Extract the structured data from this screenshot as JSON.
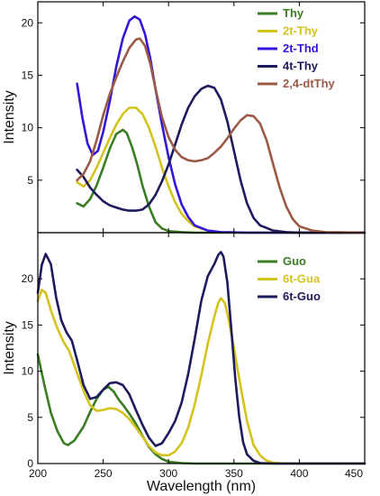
{
  "chart_data": [
    {
      "type": "line",
      "panel": "top",
      "xlabel": "",
      "ylabel": "Intensity",
      "xlim": [
        200,
        450
      ],
      "ylim": [
        0,
        22
      ],
      "x_ticks": [],
      "y_ticks": [
        5,
        10,
        15,
        20
      ],
      "legend_position": "top-right",
      "series": [
        {
          "name": "Thy",
          "color": "#3a7d22",
          "points": [
            [
              230,
              2.8
            ],
            [
              235,
              2.5
            ],
            [
              240,
              3.2
            ],
            [
              245,
              4.5
            ],
            [
              250,
              6.2
            ],
            [
              255,
              8.0
            ],
            [
              260,
              9.4
            ],
            [
              265,
              9.8
            ],
            [
              268,
              9.5
            ],
            [
              272,
              8.2
            ],
            [
              276,
              6.5
            ],
            [
              280,
              4.5
            ],
            [
              285,
              2.5
            ],
            [
              290,
              1.0
            ],
            [
              295,
              0.4
            ],
            [
              300,
              0.15
            ],
            [
              310,
              0.05
            ],
            [
              320,
              0.0
            ],
            [
              450,
              0.0
            ]
          ]
        },
        {
          "name": "2t-Thy",
          "color": "#d4c31c",
          "points": [
            [
              230,
              4.8
            ],
            [
              235,
              4.4
            ],
            [
              240,
              5.0
            ],
            [
              245,
              6.2
            ],
            [
              250,
              7.6
            ],
            [
              255,
              9.0
            ],
            [
              260,
              10.3
            ],
            [
              265,
              11.3
            ],
            [
              270,
              11.9
            ],
            [
              275,
              11.9
            ],
            [
              280,
              11.3
            ],
            [
              285,
              10.0
            ],
            [
              290,
              8.2
            ],
            [
              295,
              6.2
            ],
            [
              300,
              4.4
            ],
            [
              305,
              2.9
            ],
            [
              310,
              1.8
            ],
            [
              315,
              1.1
            ],
            [
              320,
              0.6
            ],
            [
              330,
              0.2
            ],
            [
              340,
              0.05
            ],
            [
              360,
              0.0
            ],
            [
              450,
              0.0
            ]
          ]
        },
        {
          "name": "2t-Thd",
          "color": "#3317d8",
          "points": [
            [
              230,
              14.2
            ],
            [
              234,
              11.0
            ],
            [
              238,
              8.5
            ],
            [
              242,
              7.4
            ],
            [
              246,
              7.8
            ],
            [
              250,
              9.6
            ],
            [
              255,
              12.5
            ],
            [
              260,
              15.8
            ],
            [
              265,
              18.5
            ],
            [
              270,
              20.2
            ],
            [
              274,
              20.6
            ],
            [
              278,
              20.3
            ],
            [
              282,
              18.9
            ],
            [
              286,
              16.6
            ],
            [
              290,
              13.7
            ],
            [
              295,
              10.3
            ],
            [
              300,
              7.2
            ],
            [
              305,
              4.6
            ],
            [
              310,
              2.7
            ],
            [
              315,
              1.5
            ],
            [
              320,
              0.7
            ],
            [
              330,
              0.2
            ],
            [
              340,
              0.05
            ],
            [
              360,
              0.0
            ],
            [
              450,
              0.0
            ]
          ]
        },
        {
          "name": "4t-Thy",
          "color": "#1e1a5e",
          "points": [
            [
              230,
              6.0
            ],
            [
              235,
              5.3
            ],
            [
              240,
              4.3
            ],
            [
              245,
              3.6
            ],
            [
              250,
              3.0
            ],
            [
              255,
              2.6
            ],
            [
              260,
              2.4
            ],
            [
              265,
              2.2
            ],
            [
              270,
              2.1
            ],
            [
              275,
              2.1
            ],
            [
              280,
              2.2
            ],
            [
              285,
              2.7
            ],
            [
              290,
              3.6
            ],
            [
              295,
              4.9
            ],
            [
              300,
              6.5
            ],
            [
              305,
              8.4
            ],
            [
              310,
              10.3
            ],
            [
              315,
              11.9
            ],
            [
              320,
              13.0
            ],
            [
              325,
              13.7
            ],
            [
              330,
              14.0
            ],
            [
              335,
              13.8
            ],
            [
              340,
              12.7
            ],
            [
              345,
              10.6
            ],
            [
              350,
              7.8
            ],
            [
              355,
              5.0
            ],
            [
              360,
              2.8
            ],
            [
              365,
              1.4
            ],
            [
              370,
              0.7
            ],
            [
              380,
              0.2
            ],
            [
              390,
              0.05
            ],
            [
              400,
              0.0
            ],
            [
              450,
              0.0
            ]
          ]
        },
        {
          "name": "2,4-dtThy",
          "color": "#9a5a45",
          "points": [
            [
              230,
              5.0
            ],
            [
              235,
              5.6
            ],
            [
              240,
              6.8
            ],
            [
              245,
              8.8
            ],
            [
              250,
              11.2
            ],
            [
              255,
              13.2
            ],
            [
              260,
              14.8
            ],
            [
              265,
              16.3
            ],
            [
              270,
              17.6
            ],
            [
              275,
              18.4
            ],
            [
              278,
              18.5
            ],
            [
              282,
              17.8
            ],
            [
              286,
              16.1
            ],
            [
              290,
              13.7
            ],
            [
              295,
              11.0
            ],
            [
              300,
              9.1
            ],
            [
              305,
              7.9
            ],
            [
              310,
              7.2
            ],
            [
              315,
              6.9
            ],
            [
              320,
              6.8
            ],
            [
              325,
              6.9
            ],
            [
              330,
              7.1
            ],
            [
              335,
              7.6
            ],
            [
              340,
              8.2
            ],
            [
              345,
              9.0
            ],
            [
              350,
              9.9
            ],
            [
              355,
              10.7
            ],
            [
              360,
              11.2
            ],
            [
              365,
              11.1
            ],
            [
              370,
              10.4
            ],
            [
              375,
              8.8
            ],
            [
              380,
              6.5
            ],
            [
              385,
              4.3
            ],
            [
              390,
              2.5
            ],
            [
              395,
              1.3
            ],
            [
              400,
              0.6
            ],
            [
              410,
              0.2
            ],
            [
              420,
              0.05
            ],
            [
              450,
              0.0
            ]
          ]
        }
      ]
    },
    {
      "type": "line",
      "panel": "bottom",
      "xlabel": "Wavelength (nm)",
      "ylabel": "Intensity",
      "xlim": [
        200,
        450
      ],
      "ylim": [
        0,
        25
      ],
      "x_ticks": [
        200,
        250,
        300,
        350,
        400,
        450
      ],
      "y_ticks": [
        0,
        5,
        10,
        15,
        20
      ],
      "legend_position": "top-right",
      "series": [
        {
          "name": "Guo",
          "color": "#3a7d22",
          "points": [
            [
              200,
              11.8
            ],
            [
              205,
              8.5
            ],
            [
              210,
              5.5
            ],
            [
              215,
              3.5
            ],
            [
              220,
              2.2
            ],
            [
              223,
              2.0
            ],
            [
              228,
              2.5
            ],
            [
              235,
              4.0
            ],
            [
              240,
              5.6
            ],
            [
              245,
              7.0
            ],
            [
              250,
              8.0
            ],
            [
              254,
              8.3
            ],
            [
              258,
              7.8
            ],
            [
              262,
              6.9
            ],
            [
              266,
              6.2
            ],
            [
              270,
              5.4
            ],
            [
              275,
              4.3
            ],
            [
              280,
              3.0
            ],
            [
              285,
              1.8
            ],
            [
              290,
              1.0
            ],
            [
              295,
              0.5
            ],
            [
              300,
              0.2
            ],
            [
              310,
              0.05
            ],
            [
              320,
              0.0
            ],
            [
              450,
              0.0
            ]
          ]
        },
        {
          "name": "6t-Gua",
          "color": "#d4c31c",
          "points": [
            [
              200,
              17.6
            ],
            [
              203,
              18.8
            ],
            [
              206,
              18.5
            ],
            [
              210,
              16.6
            ],
            [
              215,
              14.6
            ],
            [
              220,
              13.1
            ],
            [
              224,
              12.2
            ],
            [
              228,
              10.6
            ],
            [
              232,
              9.0
            ],
            [
              236,
              7.5
            ],
            [
              240,
              6.3
            ],
            [
              245,
              5.7
            ],
            [
              250,
              5.8
            ],
            [
              255,
              6.0
            ],
            [
              260,
              5.9
            ],
            [
              265,
              5.5
            ],
            [
              270,
              4.8
            ],
            [
              275,
              3.9
            ],
            [
              280,
              2.9
            ],
            [
              285,
              1.9
            ],
            [
              290,
              1.2
            ],
            [
              295,
              0.9
            ],
            [
              300,
              0.9
            ],
            [
              305,
              1.3
            ],
            [
              310,
              2.2
            ],
            [
              315,
              3.9
            ],
            [
              320,
              6.4
            ],
            [
              325,
              9.5
            ],
            [
              330,
              13.0
            ],
            [
              335,
              15.9
            ],
            [
              338,
              17.4
            ],
            [
              340,
              17.9
            ],
            [
              343,
              17.4
            ],
            [
              346,
              15.6
            ],
            [
              350,
              12.5
            ],
            [
              355,
              8.4
            ],
            [
              360,
              4.6
            ],
            [
              365,
              2.0
            ],
            [
              370,
              0.9
            ],
            [
              375,
              0.3
            ],
            [
              380,
              0.1
            ],
            [
              390,
              0.0
            ],
            [
              450,
              0.0
            ]
          ]
        },
        {
          "name": "6t-Guo",
          "color": "#1e1a5e",
          "points": [
            [
              200,
              18.5
            ],
            [
              203,
              21.5
            ],
            [
              206,
              22.7
            ],
            [
              210,
              21.6
            ],
            [
              214,
              18.0
            ],
            [
              218,
              15.5
            ],
            [
              222,
              14.2
            ],
            [
              226,
              13.3
            ],
            [
              230,
              11.2
            ],
            [
              235,
              8.5
            ],
            [
              240,
              7.0
            ],
            [
              245,
              7.2
            ],
            [
              250,
              8.0
            ],
            [
              255,
              8.7
            ],
            [
              260,
              8.8
            ],
            [
              265,
              8.5
            ],
            [
              270,
              7.5
            ],
            [
              275,
              5.8
            ],
            [
              280,
              4.2
            ],
            [
              285,
              2.8
            ],
            [
              290,
              1.9
            ],
            [
              295,
              2.2
            ],
            [
              300,
              3.3
            ],
            [
              305,
              4.6
            ],
            [
              310,
              6.6
            ],
            [
              315,
              9.7
            ],
            [
              320,
              13.5
            ],
            [
              325,
              17.6
            ],
            [
              330,
              20.3
            ],
            [
              335,
              21.6
            ],
            [
              338,
              22.6
            ],
            [
              340,
              22.9
            ],
            [
              342,
              22.4
            ],
            [
              345,
              19.6
            ],
            [
              348,
              14.5
            ],
            [
              351,
              9.2
            ],
            [
              354,
              5.1
            ],
            [
              357,
              2.3
            ],
            [
              360,
              1.0
            ],
            [
              365,
              0.3
            ],
            [
              370,
              0.05
            ],
            [
              380,
              0.0
            ],
            [
              450,
              0.0
            ]
          ]
        }
      ]
    }
  ]
}
